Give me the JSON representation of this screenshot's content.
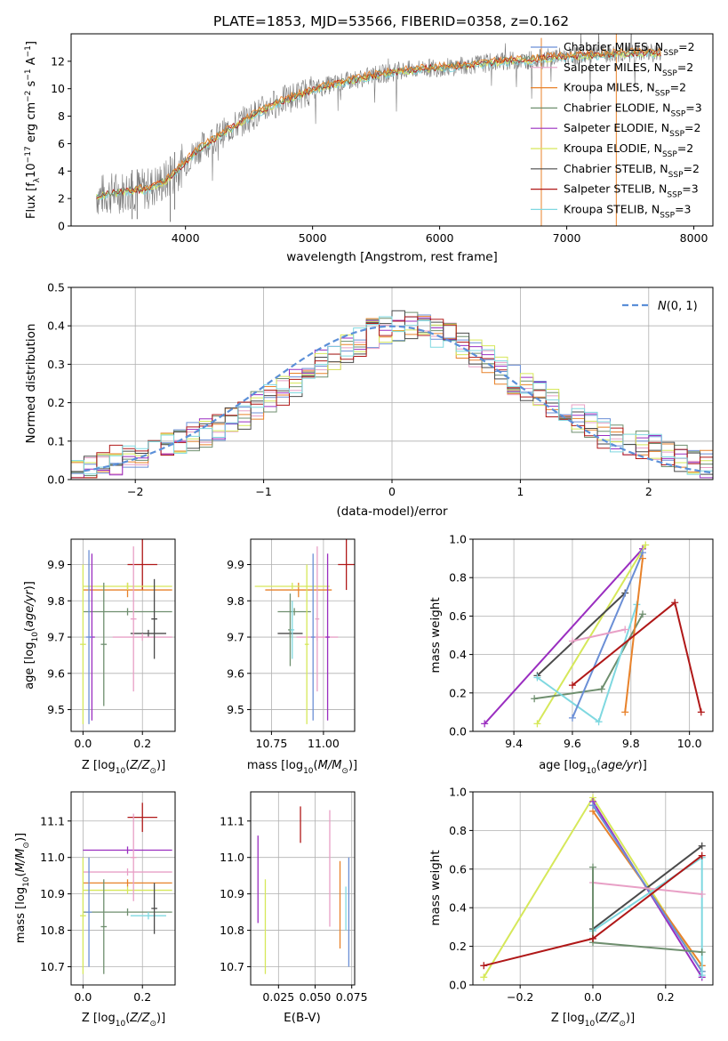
{
  "figure_title": "PLATE=1853, MJD=53566, FIBERID=0358, z=0.162",
  "colors": {
    "chabrier_miles": "#6b8fd6",
    "salpeter_miles": "#e8a0c6",
    "kroupa_miles": "#e8822a",
    "chabrier_elodie": "#6f8f6f",
    "salpeter_elodie": "#9a2ec0",
    "kroupa_elodie": "#d6e85a",
    "chabrier_stelib": "#4a4a4a",
    "salpeter_stelib": "#b01818",
    "kroupa_stelib": "#7fd8e0",
    "data": "#7a7a7a",
    "normal": "#5b8fd8",
    "grid": "#b0b0b0"
  },
  "chart_data": [
    {
      "id": "spectrum",
      "type": "line",
      "xlabel": "wavelength [Angstrom, rest frame]",
      "ylabel": "Flux [f_λ10^-17 erg cm^-2 s^-1 A^-1]",
      "xlim": [
        3100,
        8150
      ],
      "ylim": [
        0,
        14
      ],
      "xticks": [
        4000,
        5000,
        6000,
        7000,
        8000
      ],
      "yticks": [
        0,
        2,
        4,
        6,
        8,
        10,
        12
      ],
      "legend_position": "top-right",
      "legend": [
        {
          "label": "Chabrier MILES, N",
          "sub": "SSP",
          "suffix": "=2",
          "color": "#6b8fd6"
        },
        {
          "label": "Salpeter MILES, N",
          "sub": "SSP",
          "suffix": "=2",
          "color": "#e8a0c6"
        },
        {
          "label": "Kroupa MILES, N",
          "sub": "SSP",
          "suffix": "=2",
          "color": "#e8822a"
        },
        {
          "label": "Chabrier ELODIE, N",
          "sub": "SSP",
          "suffix": "=3",
          "color": "#6f8f6f"
        },
        {
          "label": "Salpeter ELODIE, N",
          "sub": "SSP",
          "suffix": "=2",
          "color": "#9a2ec0"
        },
        {
          "label": "Kroupa ELODIE, N",
          "sub": "SSP",
          "suffix": "=2",
          "color": "#d6e85a"
        },
        {
          "label": "Chabrier STELIB, N",
          "sub": "SSP",
          "suffix": "=2",
          "color": "#4a4a4a"
        },
        {
          "label": "Salpeter STELIB, N",
          "sub": "SSP",
          "suffix": "=3",
          "color": "#b01818"
        },
        {
          "label": "Kroupa STELIB, N",
          "sub": "SSP",
          "suffix": "=3",
          "color": "#7fd8e0"
        }
      ],
      "model_continuum": {
        "x": [
          3300,
          3500,
          3700,
          3850,
          3950,
          4100,
          4300,
          4500,
          4700,
          4900,
          5100,
          5300,
          5500,
          5700,
          5900,
          6100,
          6300,
          6500,
          6700,
          6900,
          7100,
          7300,
          7500,
          7700
        ],
        "y": [
          2.2,
          2.5,
          2.7,
          3.3,
          4.2,
          5.6,
          6.8,
          7.9,
          8.9,
          9.6,
          10.2,
          10.6,
          11.0,
          11.3,
          11.5,
          11.6,
          11.8,
          12.0,
          12.1,
          12.3,
          12.4,
          12.5,
          12.6,
          12.6
        ]
      }
    },
    {
      "id": "residual_histogram",
      "type": "bar",
      "xlabel": "(data-model)/error",
      "ylabel": "Normed distribution",
      "xlim": [
        -2.5,
        2.5
      ],
      "ylim": [
        0,
        0.5
      ],
      "xticks": [
        -2,
        -1,
        0,
        1,
        2
      ],
      "yticks": [
        0.0,
        0.1,
        0.2,
        0.3,
        0.4,
        0.5
      ],
      "legend": [
        {
          "label": "N(0,1)",
          "color": "#5b8fd8",
          "style": "dashed"
        }
      ],
      "legend_position": "top-right",
      "bin_width": 0.1,
      "bin_start": -2.5,
      "base_values": [
        0.02,
        0.03,
        0.04,
        0.05,
        0.06,
        0.07,
        0.08,
        0.09,
        0.1,
        0.11,
        0.12,
        0.13,
        0.15,
        0.17,
        0.19,
        0.21,
        0.23,
        0.25,
        0.27,
        0.3,
        0.32,
        0.34,
        0.36,
        0.38,
        0.39,
        0.4,
        0.4,
        0.39,
        0.38,
        0.37,
        0.35,
        0.33,
        0.31,
        0.28,
        0.26,
        0.24,
        0.22,
        0.2,
        0.18,
        0.16,
        0.14,
        0.12,
        0.11,
        0.1,
        0.09,
        0.08,
        0.07,
        0.06,
        0.05,
        0.04
      ]
    },
    {
      "id": "age_vs_Z",
      "type": "scatter",
      "xlabel": "Z [log10(Z/Z⊙)]",
      "ylabel": "age [log10(age/yr)]",
      "xlim": [
        -0.04,
        0.31
      ],
      "ylim": [
        9.44,
        9.97
      ],
      "xticks": [
        0.0,
        0.2
      ],
      "yticks": [
        9.5,
        9.6,
        9.7,
        9.8,
        9.9
      ],
      "points": [
        {
          "x": 0.2,
          "y": 9.9,
          "xerr": 0.05,
          "yerr": 0.07,
          "color": "#b01818"
        },
        {
          "x": 0.15,
          "y": 9.83,
          "xerr": 0.15,
          "yerr": 0.02,
          "color": "#e8822a"
        },
        {
          "x": 0.15,
          "y": 9.84,
          "xerr": 0.15,
          "yerr": 0.01,
          "color": "#d6e85a"
        },
        {
          "x": 0.22,
          "y": 9.71,
          "xerr": 0.06,
          "yerr": 0.01,
          "color": "#4a4a4a"
        },
        {
          "x": 0.15,
          "y": 9.77,
          "xerr": 0.15,
          "yerr": 0.01,
          "color": "#6f8f6f"
        },
        {
          "x": 0.2,
          "y": 9.7,
          "xerr": 0.1,
          "yerr": 0.01,
          "color": "#e8a0c6"
        },
        {
          "x": 0.03,
          "y": 9.7,
          "xerr": 0.01,
          "yerr": 0.23,
          "color": "#9a2ec0"
        },
        {
          "x": 0.0,
          "y": 9.68,
          "xerr": 0.01,
          "yerr": 0.22,
          "color": "#d6e85a"
        },
        {
          "x": 0.07,
          "y": 9.68,
          "xerr": 0.01,
          "yerr": 0.17,
          "color": "#6f8f6f"
        },
        {
          "x": 0.17,
          "y": 9.75,
          "xerr": 0.01,
          "yerr": 0.2,
          "color": "#e8a0c6"
        },
        {
          "x": 0.24,
          "y": 9.75,
          "xerr": 0.01,
          "yerr": 0.11,
          "color": "#4a4a4a"
        },
        {
          "x": 0.02,
          "y": 9.7,
          "xerr": 0.01,
          "yerr": 0.24,
          "color": "#6b8fd6"
        }
      ]
    },
    {
      "id": "age_vs_mass",
      "type": "scatter",
      "xlabel": "mass [log10(M/M⊙)]",
      "ylabel": "",
      "xlim": [
        10.65,
        11.15
      ],
      "ylim": [
        9.44,
        9.97
      ],
      "xticks": [
        10.75,
        11.0
      ],
      "yticks": [
        9.5,
        9.6,
        9.7,
        9.8,
        9.9
      ],
      "points": [
        {
          "x": 11.11,
          "y": 9.9,
          "xerr": 0.04,
          "yerr": 0.07,
          "color": "#b01818"
        },
        {
          "x": 10.88,
          "y": 9.83,
          "xerr": 0.16,
          "yerr": 0.02,
          "color": "#e8822a"
        },
        {
          "x": 10.85,
          "y": 9.84,
          "xerr": 0.18,
          "yerr": 0.01,
          "color": "#d6e85a"
        },
        {
          "x": 10.84,
          "y": 9.71,
          "xerr": 0.06,
          "yerr": 0.01,
          "color": "#4a4a4a"
        },
        {
          "x": 10.86,
          "y": 9.77,
          "xerr": 0.08,
          "yerr": 0.01,
          "color": "#6f8f6f"
        },
        {
          "x": 10.97,
          "y": 9.7,
          "xerr": 0.1,
          "yerr": 0.01,
          "color": "#e8a0c6"
        },
        {
          "x": 11.02,
          "y": 9.7,
          "xerr": 0.01,
          "yerr": 0.23,
          "color": "#9a2ec0"
        },
        {
          "x": 10.92,
          "y": 9.68,
          "xerr": 0.01,
          "yerr": 0.22,
          "color": "#d6e85a"
        },
        {
          "x": 10.84,
          "y": 9.72,
          "xerr": 0.01,
          "yerr": 0.1,
          "color": "#6f8f6f"
        },
        {
          "x": 10.97,
          "y": 9.75,
          "xerr": 0.01,
          "yerr": 0.2,
          "color": "#e8a0c6"
        },
        {
          "x": 10.85,
          "y": 9.72,
          "xerr": 0.01,
          "yerr": 0.08,
          "color": "#7fd8e0"
        },
        {
          "x": 10.95,
          "y": 9.7,
          "xerr": 0.01,
          "yerr": 0.23,
          "color": "#6b8fd6"
        }
      ]
    },
    {
      "id": "weight_vs_age",
      "type": "line",
      "xlabel": "age [log10(age/yr)]",
      "ylabel": "mass weight",
      "xlim": [
        9.26,
        10.08
      ],
      "ylim": [
        0,
        1.0
      ],
      "xticks": [
        9.4,
        9.6,
        9.8,
        10.0
      ],
      "yticks": [
        0.0,
        0.2,
        0.4,
        0.6,
        0.8,
        1.0
      ],
      "series": [
        {
          "color": "#9a2ec0",
          "x": [
            9.3,
            9.84
          ],
          "y": [
            0.04,
            0.95
          ]
        },
        {
          "color": "#d6e85a",
          "x": [
            9.48,
            9.85
          ],
          "y": [
            0.04,
            0.97
          ]
        },
        {
          "color": "#4a4a4a",
          "x": [
            9.48,
            9.78
          ],
          "y": [
            0.29,
            0.72
          ]
        },
        {
          "color": "#6f8f6f",
          "x": [
            9.47,
            9.7,
            9.84
          ],
          "y": [
            0.17,
            0.22,
            0.61
          ]
        },
        {
          "color": "#7fd8e0",
          "x": [
            9.48,
            9.69,
            9.82
          ],
          "y": [
            0.28,
            0.05,
            0.66
          ]
        },
        {
          "color": "#6b8fd6",
          "x": [
            9.6,
            9.84
          ],
          "y": [
            0.07,
            0.93
          ]
        },
        {
          "color": "#e8822a",
          "x": [
            9.78,
            9.84
          ],
          "y": [
            0.1,
            0.9
          ]
        },
        {
          "color": "#e8a0c6",
          "x": [
            9.6,
            9.78
          ],
          "y": [
            0.47,
            0.53
          ]
        },
        {
          "color": "#b01818",
          "x": [
            9.6,
            9.95,
            10.04
          ],
          "y": [
            0.24,
            0.67,
            0.1
          ]
        }
      ]
    },
    {
      "id": "mass_vs_Z",
      "type": "scatter",
      "xlabel": "Z [log10(Z/Z⊙)]",
      "ylabel": "mass [log10(M/M⊙)]",
      "xlim": [
        -0.04,
        0.31
      ],
      "ylim": [
        10.65,
        11.18
      ],
      "xticks": [
        0.0,
        0.2
      ],
      "yticks": [
        10.7,
        10.8,
        10.9,
        11.0,
        11.1
      ],
      "points": [
        {
          "x": 0.2,
          "y": 11.11,
          "xerr": 0.05,
          "yerr": 0.04,
          "color": "#b01818"
        },
        {
          "x": 0.15,
          "y": 11.02,
          "xerr": 0.15,
          "yerr": 0.01,
          "color": "#9a2ec0"
        },
        {
          "x": 0.15,
          "y": 10.96,
          "xerr": 0.15,
          "yerr": 0.01,
          "color": "#e8a0c6"
        },
        {
          "x": 0.15,
          "y": 10.93,
          "xerr": 0.15,
          "yerr": 0.01,
          "color": "#e8822a"
        },
        {
          "x": 0.15,
          "y": 10.91,
          "xerr": 0.15,
          "yerr": 0.01,
          "color": "#d6e85a"
        },
        {
          "x": 0.15,
          "y": 10.85,
          "xerr": 0.15,
          "yerr": 0.01,
          "color": "#6f8f6f"
        },
        {
          "x": 0.22,
          "y": 10.84,
          "xerr": 0.06,
          "yerr": 0.01,
          "color": "#7fd8e0"
        },
        {
          "x": 0.0,
          "y": 10.84,
          "xerr": 0.01,
          "yerr": 0.16,
          "color": "#d6e85a"
        },
        {
          "x": 0.07,
          "y": 10.81,
          "xerr": 0.01,
          "yerr": 0.13,
          "color": "#6f8f6f"
        },
        {
          "x": 0.17,
          "y": 11.0,
          "xerr": 0.01,
          "yerr": 0.12,
          "color": "#e8a0c6"
        },
        {
          "x": 0.24,
          "y": 10.86,
          "xerr": 0.01,
          "yerr": 0.07,
          "color": "#4a4a4a"
        },
        {
          "x": 0.02,
          "y": 10.85,
          "xerr": 0.01,
          "yerr": 0.15,
          "color": "#6b8fd6"
        }
      ]
    },
    {
      "id": "mass_vs_EBV",
      "type": "scatter",
      "xlabel": "E(B-V)",
      "ylabel": "",
      "xlim": [
        0.006,
        0.077
      ],
      "ylim": [
        10.65,
        11.18
      ],
      "xticks": [
        0.025,
        0.05,
        0.075
      ],
      "yticks": [
        10.7,
        10.8,
        10.9,
        11.0,
        11.1
      ],
      "points": [
        {
          "x": 0.04,
          "y": 11.09,
          "xerr": 0.0,
          "yerr": 0.05,
          "color": "#b01818"
        },
        {
          "x": 0.011,
          "y": 10.94,
          "xerr": 0.0,
          "yerr": 0.12,
          "color": "#9a2ec0"
        },
        {
          "x": 0.016,
          "y": 10.81,
          "xerr": 0.0,
          "yerr": 0.13,
          "color": "#d6e85a"
        },
        {
          "x": 0.06,
          "y": 10.97,
          "xerr": 0.0,
          "yerr": 0.16,
          "color": "#e8a0c6"
        },
        {
          "x": 0.067,
          "y": 10.87,
          "xerr": 0.0,
          "yerr": 0.12,
          "color": "#e8822a"
        },
        {
          "x": 0.071,
          "y": 10.86,
          "xerr": 0.0,
          "yerr": 0.06,
          "color": "#7fd8e0"
        },
        {
          "x": 0.073,
          "y": 10.85,
          "xerr": 0.0,
          "yerr": 0.15,
          "color": "#6b8fd6"
        }
      ]
    },
    {
      "id": "weight_vs_Z",
      "type": "line",
      "xlabel": "Z [log10(Z/Z⊙)]",
      "ylabel": "mass weight",
      "xlim": [
        -0.33,
        0.33
      ],
      "ylim": [
        0,
        1.0
      ],
      "xticks": [
        -0.2,
        0.0,
        0.2
      ],
      "yticks": [
        0.0,
        0.2,
        0.4,
        0.6,
        0.8,
        1.0
      ],
      "series": [
        {
          "color": "#d6e85a",
          "x": [
            -0.3,
            0.0,
            0.3
          ],
          "y": [
            0.04,
            0.97,
            0.07
          ]
        },
        {
          "color": "#9a2ec0",
          "x": [
            0.0,
            0.3
          ],
          "y": [
            0.95,
            0.04
          ]
        },
        {
          "color": "#e8822a",
          "x": [
            0.0,
            0.3
          ],
          "y": [
            0.9,
            0.1
          ]
        },
        {
          "color": "#6b8fd6",
          "x": [
            0.0,
            0.3
          ],
          "y": [
            0.93,
            0.07
          ]
        },
        {
          "color": "#4a4a4a",
          "x": [
            0.0,
            0.3
          ],
          "y": [
            0.29,
            0.72
          ]
        },
        {
          "color": "#7fd8e0",
          "x": [
            0.0,
            0.3,
            0.3
          ],
          "y": [
            0.28,
            0.66,
            0.05
          ]
        },
        {
          "color": "#e8a0c6",
          "x": [
            0.0,
            0.3
          ],
          "y": [
            0.53,
            0.47
          ]
        },
        {
          "color": "#6f8f6f",
          "x": [
            0.0,
            0.0,
            0.3
          ],
          "y": [
            0.61,
            0.22,
            0.17
          ]
        },
        {
          "color": "#b01818",
          "x": [
            -0.3,
            0.0,
            0.3
          ],
          "y": [
            0.1,
            0.24,
            0.67
          ]
        }
      ]
    }
  ]
}
